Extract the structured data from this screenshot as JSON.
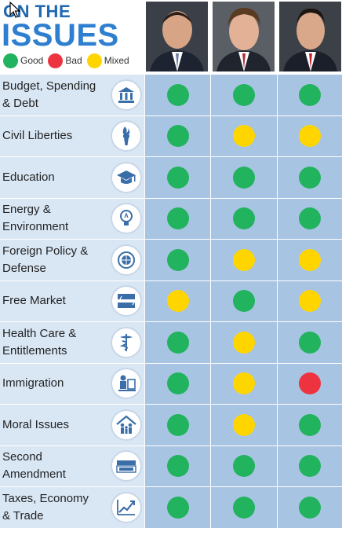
{
  "header": {
    "title_line1": "ON THE",
    "title_line2": "ISSUES"
  },
  "legend": [
    {
      "label": "Good",
      "color": "#22b35e"
    },
    {
      "label": "Bad",
      "color": "#ee3340"
    },
    {
      "label": "Mixed",
      "color": "#ffd500"
    }
  ],
  "colors": {
    "good": "#22b35e",
    "bad": "#ee3340",
    "mixed": "#ffd500",
    "brand_blue": "#2f7fd0",
    "row_label_bg": "#d9e7f5",
    "row_cell_bg": "#a8c4e3"
  },
  "candidates": [
    {
      "photo": "candidate-1-photo"
    },
    {
      "photo": "candidate-2-photo"
    },
    {
      "photo": "candidate-3-photo"
    }
  ],
  "issues": [
    {
      "label": "Budget, Spending\n& Debt",
      "icon": "bank-icon",
      "ratings": [
        "good",
        "good",
        "good"
      ]
    },
    {
      "label": "Civil Liberties",
      "icon": "torch-icon",
      "ratings": [
        "good",
        "mixed",
        "mixed"
      ]
    },
    {
      "label": "Education",
      "icon": "graduation-cap-icon",
      "ratings": [
        "good",
        "good",
        "good"
      ]
    },
    {
      "label": "Energy &\nEnvironment",
      "icon": "lightbulb-icon",
      "ratings": [
        "good",
        "good",
        "good"
      ]
    },
    {
      "label": "Foreign Policy &\nDefense",
      "icon": "globe-seal-icon",
      "ratings": [
        "good",
        "mixed",
        "mixed"
      ]
    },
    {
      "label": "Free Market",
      "icon": "supply-demand-icon",
      "ratings": [
        "mixed",
        "good",
        "mixed"
      ]
    },
    {
      "label": "Health Care &\nEntitlements",
      "icon": "caduceus-icon",
      "ratings": [
        "good",
        "mixed",
        "good"
      ]
    },
    {
      "label": "Immigration",
      "icon": "border-guard-icon",
      "ratings": [
        "good",
        "mixed",
        "bad"
      ]
    },
    {
      "label": "Moral Issues",
      "icon": "family-house-icon",
      "ratings": [
        "good",
        "mixed",
        "good"
      ]
    },
    {
      "label": "Second\nAmendment",
      "icon": "second-amendment-icon",
      "ratings": [
        "good",
        "good",
        "good"
      ]
    },
    {
      "label": "Taxes, Economy\n& Trade",
      "icon": "growth-chart-icon",
      "ratings": [
        "good",
        "good",
        "good"
      ]
    }
  ]
}
